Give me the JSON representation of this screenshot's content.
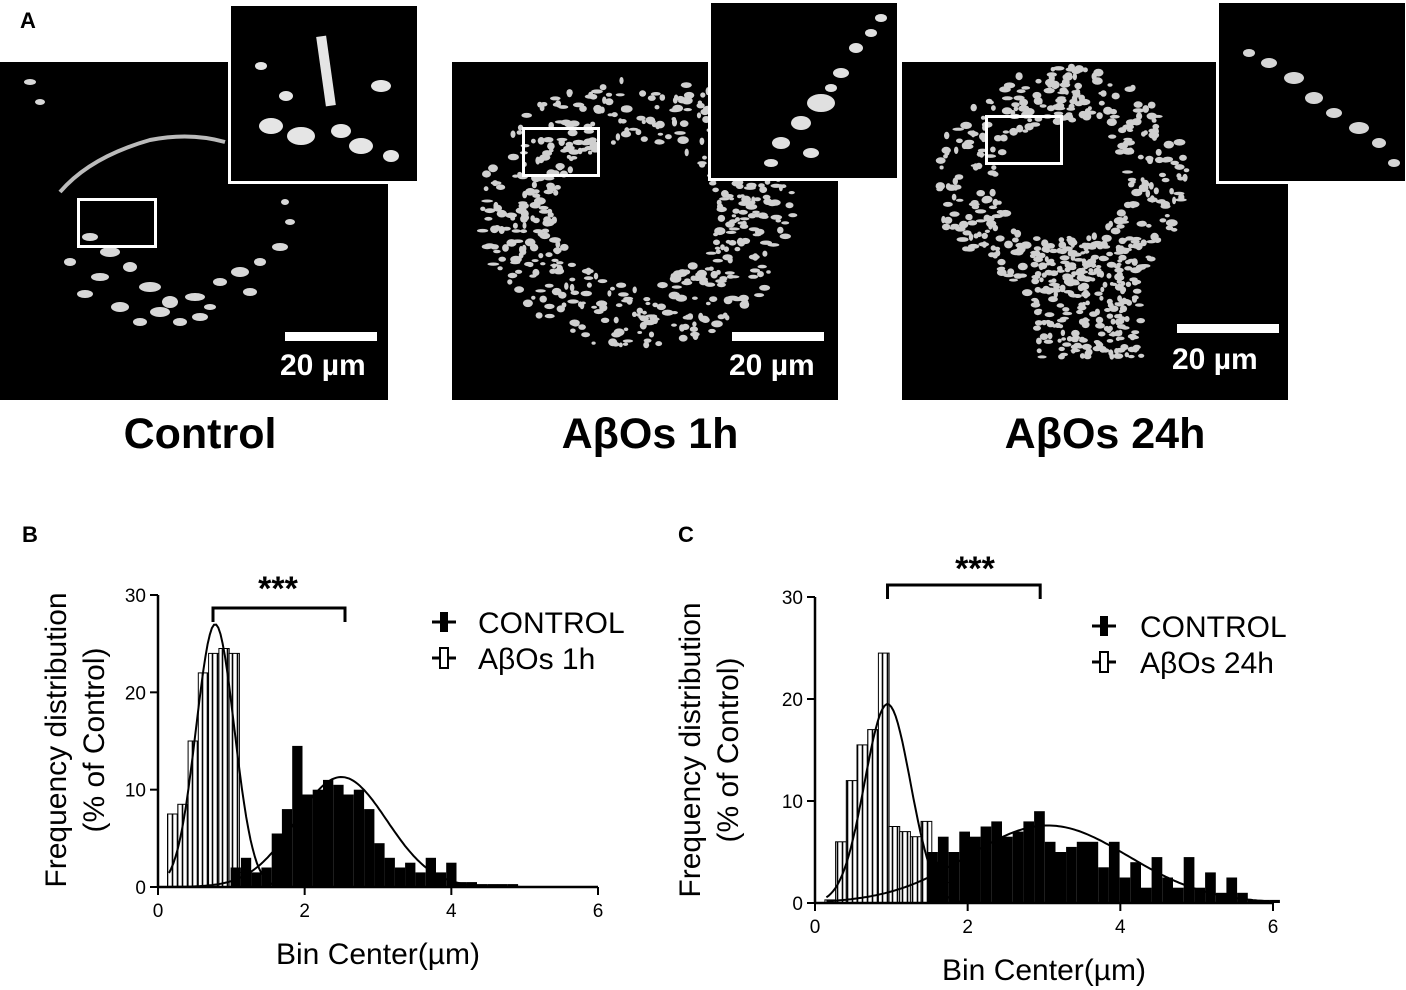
{
  "panel_labels": {
    "a": "A",
    "b": "B",
    "c": "C"
  },
  "micrographs": [
    {
      "scale_label": "20 µm",
      "condition": "Control"
    },
    {
      "scale_label": "20 µm",
      "condition": "AβOs 1h"
    },
    {
      "scale_label": "20 µm",
      "condition": "AβOs 24h"
    }
  ],
  "chart_data": [
    {
      "type": "bar",
      "panel": "B",
      "xlabel": "Bin Center(µm)",
      "ylabel_line1": "Frequency distribution",
      "ylabel_line2": "(% of Control)",
      "xlim": [
        0,
        6
      ],
      "ylim": [
        0,
        30
      ],
      "xticks": [
        "0",
        "2",
        "4",
        "6"
      ],
      "yticks": [
        "0",
        "10",
        "20",
        "30"
      ],
      "bin_width": 0.14,
      "significance": "***",
      "significance_bracket": [
        0.75,
        2.55
      ],
      "legend": {
        "position": "top-right",
        "entries": [
          "CONTROL",
          "AβOs 1h"
        ]
      },
      "series": [
        {
          "name": "AβOs 1h",
          "style": "hatched",
          "x": [
            0.2,
            0.34,
            0.48,
            0.62,
            0.76,
            0.9,
            1.04,
            1.18
          ],
          "values": [
            7.5,
            8.5,
            15.0,
            22.0,
            24.0,
            24.5,
            24.0,
            1.5
          ]
        },
        {
          "name": "CONTROL",
          "style": "solid",
          "x": [
            1.06,
            1.2,
            1.34,
            1.48,
            1.62,
            1.76,
            1.9,
            2.04,
            2.18,
            2.32,
            2.46,
            2.6,
            2.74,
            2.88,
            3.02,
            3.16,
            3.3,
            3.44,
            3.58,
            3.72,
            3.86,
            4.0,
            4.14,
            4.28,
            4.42,
            4.56,
            4.7,
            4.84
          ],
          "values": [
            2.0,
            3.0,
            1.5,
            2.0,
            5.5,
            8.0,
            14.5,
            9.5,
            10.0,
            11.0,
            10.5,
            9.5,
            10.0,
            8.0,
            4.5,
            3.0,
            2.0,
            2.5,
            1.5,
            3.0,
            1.5,
            2.5,
            0.5,
            0.5,
            0.3,
            0.3,
            0.3,
            0.3
          ]
        }
      ],
      "fits": [
        {
          "name": "AβOs 1h",
          "center": 0.78,
          "sigma": 0.26,
          "peak": 27.0
        },
        {
          "name": "CONTROL",
          "center": 2.5,
          "sigma": 0.62,
          "peak": 11.3
        }
      ]
    },
    {
      "type": "bar",
      "panel": "C",
      "xlabel": "Bin Center(µm)",
      "ylabel_line1": "Frequency distribution",
      "ylabel_line2": "(% of Control)",
      "xlim": [
        0,
        6
      ],
      "ylim": [
        0,
        30
      ],
      "xticks": [
        "0",
        "2",
        "4",
        "6"
      ],
      "yticks": [
        "0",
        "10",
        "20",
        "30"
      ],
      "bin_width": 0.14,
      "significance": "***",
      "significance_bracket": [
        0.95,
        2.95
      ],
      "legend": {
        "position": "top-right",
        "entries": [
          "CONTROL",
          "AβOs 24h"
        ]
      },
      "series": [
        {
          "name": "AβOs 24h",
          "style": "hatched",
          "x": [
            0.2,
            0.34,
            0.48,
            0.62,
            0.76,
            0.9,
            1.04,
            1.18,
            1.32,
            1.46,
            1.6,
            1.74
          ],
          "values": [
            0.3,
            6.0,
            12.0,
            15.5,
            17.0,
            24.5,
            7.5,
            7.0,
            6.5,
            8.0,
            4.0,
            2.0
          ]
        },
        {
          "name": "CONTROL",
          "style": "solid",
          "x": [
            1.54,
            1.68,
            1.82,
            1.96,
            2.1,
            2.24,
            2.38,
            2.52,
            2.66,
            2.8,
            2.94,
            3.08,
            3.22,
            3.36,
            3.5,
            3.64,
            3.78,
            3.92,
            4.06,
            4.2,
            4.34,
            4.48,
            4.62,
            4.76,
            4.9,
            5.04,
            5.18,
            5.32,
            5.46,
            5.6,
            5.74,
            5.88,
            6.02
          ],
          "values": [
            5.0,
            6.5,
            5.0,
            7.0,
            6.5,
            7.5,
            8.0,
            6.5,
            7.0,
            8.0,
            9.0,
            6.0,
            5.0,
            5.5,
            6.0,
            6.0,
            3.5,
            6.0,
            2.5,
            4.0,
            1.5,
            4.5,
            2.5,
            1.5,
            4.5,
            1.5,
            3.0,
            1.0,
            2.5,
            1.0,
            0.3,
            0.3,
            0.3
          ]
        }
      ],
      "fits": [
        {
          "name": "AβOs 24h",
          "center": 0.95,
          "sigma": 0.3,
          "peak": 19.5
        },
        {
          "name": "CONTROL",
          "center": 3.05,
          "sigma": 1.05,
          "peak": 7.6
        }
      ]
    }
  ]
}
